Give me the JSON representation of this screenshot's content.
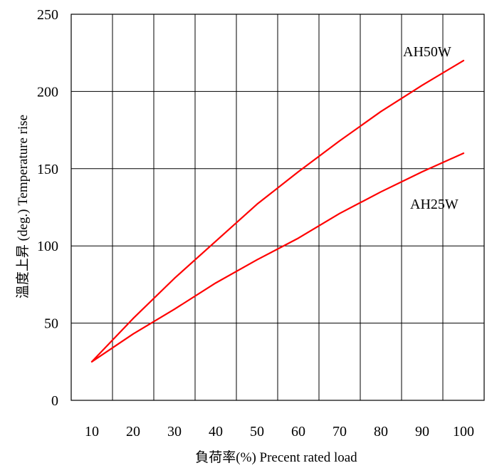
{
  "chart_data": {
    "type": "line",
    "title": "",
    "xlabel": "負荷率(%) Precent rated load",
    "ylabel": "溫度上昇 (deg.) Temperature rise",
    "x": [
      10,
      20,
      30,
      40,
      50,
      60,
      70,
      80,
      90,
      100
    ],
    "xlim": [
      5,
      105
    ],
    "ylim": [
      0,
      250
    ],
    "x_ticks": [
      10,
      20,
      30,
      40,
      50,
      60,
      70,
      80,
      90,
      100
    ],
    "y_ticks": [
      0,
      50,
      100,
      150,
      200,
      250
    ],
    "grid": true,
    "series": [
      {
        "name": "AH50W",
        "color": "#ff0000",
        "values": [
          25,
          53,
          79,
          103,
          127,
          148,
          168,
          187,
          204,
          220
        ]
      },
      {
        "name": "AH25W",
        "color": "#ff0000",
        "values": [
          25,
          43,
          59,
          76,
          91,
          105,
          121,
          135,
          148,
          160
        ]
      }
    ]
  }
}
